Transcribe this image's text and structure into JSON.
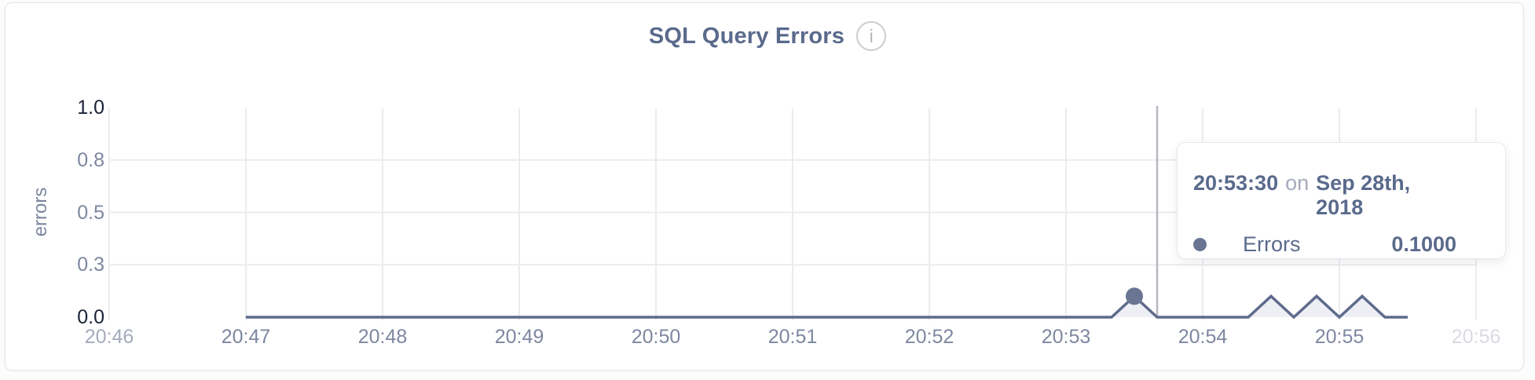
{
  "header": {
    "info_icon_glyph": "i"
  },
  "colors": {
    "title": "#5a6a8c",
    "line": "#5f6b8c",
    "fill": "#edeff5",
    "marker": "#6a7493",
    "grid": "#ececf0",
    "crosshair": "#b5b8c0",
    "tick_normal": "#7d87a0",
    "tick_strong": "#1b2138",
    "tick_muted": "#a6abbb",
    "tick_faint": "#d9dbe3",
    "axis_title": "#7d87a0",
    "card_border": "#e4e5e8"
  },
  "chart_data": {
    "type": "area",
    "title": "SQL Query Errors",
    "xlabel": "",
    "ylabel": "errors",
    "legend": "none",
    "grid": "on",
    "x_axis": {
      "range_start": "20:46",
      "range_end": "20:56",
      "tick_interval": "1 minute",
      "ticks": [
        {
          "label": "20:46",
          "emphasis": "muted"
        },
        {
          "label": "20:47"
        },
        {
          "label": "20:48"
        },
        {
          "label": "20:49"
        },
        {
          "label": "20:50"
        },
        {
          "label": "20:51"
        },
        {
          "label": "20:52"
        },
        {
          "label": "20:53"
        },
        {
          "label": "20:54"
        },
        {
          "label": "20:55"
        },
        {
          "label": "20:56",
          "emphasis": "faint"
        }
      ]
    },
    "y_axis": {
      "title": "errors",
      "ylim": [
        0,
        1
      ],
      "ticks": [
        {
          "label": "1.0",
          "emphasis": "strong"
        },
        {
          "label": "0.8"
        },
        {
          "label": "0.5"
        },
        {
          "label": "0.3"
        },
        {
          "label": "0.0",
          "emphasis": "strong"
        }
      ]
    },
    "series": [
      {
        "name": "Errors",
        "points": [
          [
            "20:47:00",
            0
          ],
          [
            "20:47:10",
            0
          ],
          [
            "20:47:20",
            0
          ],
          [
            "20:47:30",
            0
          ],
          [
            "20:47:40",
            0
          ],
          [
            "20:47:50",
            0
          ],
          [
            "20:48:00",
            0
          ],
          [
            "20:48:10",
            0
          ],
          [
            "20:48:20",
            0
          ],
          [
            "20:48:30",
            0
          ],
          [
            "20:48:40",
            0
          ],
          [
            "20:48:50",
            0
          ],
          [
            "20:49:00",
            0
          ],
          [
            "20:49:10",
            0
          ],
          [
            "20:49:20",
            0
          ],
          [
            "20:49:30",
            0
          ],
          [
            "20:49:40",
            0
          ],
          [
            "20:49:50",
            0
          ],
          [
            "20:50:00",
            0
          ],
          [
            "20:50:10",
            0
          ],
          [
            "20:50:20",
            0
          ],
          [
            "20:50:30",
            0
          ],
          [
            "20:50:40",
            0
          ],
          [
            "20:50:50",
            0
          ],
          [
            "20:51:00",
            0
          ],
          [
            "20:51:10",
            0
          ],
          [
            "20:51:20",
            0
          ],
          [
            "20:51:30",
            0
          ],
          [
            "20:51:40",
            0
          ],
          [
            "20:51:50",
            0
          ],
          [
            "20:52:00",
            0
          ],
          [
            "20:52:10",
            0
          ],
          [
            "20:52:20",
            0
          ],
          [
            "20:52:30",
            0
          ],
          [
            "20:52:40",
            0
          ],
          [
            "20:52:50",
            0
          ],
          [
            "20:53:00",
            0
          ],
          [
            "20:53:10",
            0
          ],
          [
            "20:53:20",
            0
          ],
          [
            "20:53:30",
            0.1
          ],
          [
            "20:53:40",
            0
          ],
          [
            "20:53:50",
            0
          ],
          [
            "20:54:00",
            0
          ],
          [
            "20:54:10",
            0
          ],
          [
            "20:54:20",
            0
          ],
          [
            "20:54:30",
            0.1
          ],
          [
            "20:54:40",
            0
          ],
          [
            "20:54:50",
            0.1
          ],
          [
            "20:55:00",
            0
          ],
          [
            "20:55:10",
            0.1
          ],
          [
            "20:55:20",
            0
          ],
          [
            "20:55:30",
            0
          ]
        ]
      }
    ]
  },
  "hover": {
    "time": "20:53:30",
    "date_connector": "on",
    "date": "Sep 28th, 2018",
    "series_label": "Errors",
    "value": "0.1000"
  }
}
